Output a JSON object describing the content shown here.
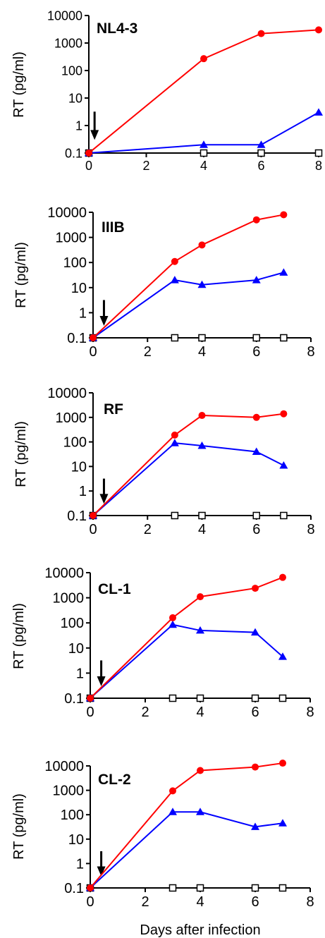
{
  "chart_data": [
    {
      "type": "line",
      "title": "NL4-3",
      "ylabel": "RT (pg/ml)",
      "xlabel": "",
      "yscale": "log",
      "ylim": [
        0.1,
        10000
      ],
      "xlim": [
        0,
        8
      ],
      "xticks": [
        "0",
        "2",
        "4",
        "6",
        "8"
      ],
      "yticks": [
        "0.1",
        "1",
        "10",
        "100",
        "1000",
        "10000"
      ],
      "arrow_day": 0.2,
      "series": [
        {
          "marker": "circle",
          "color": "#ff0000",
          "x": [
            0,
            4,
            6,
            8
          ],
          "y": [
            0.1,
            270,
            2200,
            3000
          ]
        },
        {
          "marker": "triangle",
          "color": "#0000ff",
          "x": [
            0,
            4,
            6,
            8
          ],
          "y": [
            0.1,
            0.2,
            0.2,
            3
          ]
        },
        {
          "marker": "square",
          "color": "#000000",
          "x": [
            0,
            4,
            6,
            8
          ],
          "y": [
            0.1,
            0.1,
            0.1,
            0.1
          ]
        }
      ]
    },
    {
      "type": "line",
      "title": "IIIB",
      "ylabel": "RT (pg/ml)",
      "xlabel": "",
      "yscale": "log",
      "ylim": [
        0.1,
        10000
      ],
      "xlim": [
        0,
        8
      ],
      "xticks": [
        "0",
        "2",
        "4",
        "6",
        "8"
      ],
      "yticks": [
        "0.1",
        "1",
        "10",
        "100",
        "1000",
        "10000"
      ],
      "arrow_day": 0.4,
      "series": [
        {
          "marker": "circle",
          "color": "#ff0000",
          "x": [
            0,
            3,
            4,
            6,
            7
          ],
          "y": [
            0.1,
            110,
            500,
            5000,
            8000
          ]
        },
        {
          "marker": "triangle",
          "color": "#0000ff",
          "x": [
            0,
            3,
            4,
            6,
            7
          ],
          "y": [
            0.1,
            20,
            13,
            20,
            40
          ]
        },
        {
          "marker": "square",
          "color": "#000000",
          "x": [
            0,
            3,
            4,
            6,
            7
          ],
          "y": [
            0.1,
            0.1,
            0.1,
            0.1,
            0.1
          ]
        }
      ]
    },
    {
      "type": "line",
      "title": "RF",
      "ylabel": "RT (pg/ml)",
      "xlabel": "",
      "yscale": "log",
      "ylim": [
        0.1,
        10000
      ],
      "xlim": [
        0,
        8
      ],
      "xticks": [
        "0",
        "2",
        "4",
        "6",
        "8"
      ],
      "yticks": [
        "0.1",
        "1",
        "10",
        "100",
        "1000",
        "10000"
      ],
      "arrow_day": 0.4,
      "series": [
        {
          "marker": "circle",
          "color": "#ff0000",
          "x": [
            0,
            3,
            4,
            6,
            7
          ],
          "y": [
            0.1,
            190,
            1200,
            1000,
            1400
          ]
        },
        {
          "marker": "triangle",
          "color": "#0000ff",
          "x": [
            0,
            3,
            4,
            6,
            7
          ],
          "y": [
            0.1,
            90,
            70,
            40,
            11
          ]
        },
        {
          "marker": "square",
          "color": "#000000",
          "x": [
            0,
            3,
            4,
            6,
            7
          ],
          "y": [
            0.1,
            0.1,
            0.1,
            0.1,
            0.1
          ]
        }
      ]
    },
    {
      "type": "line",
      "title": "CL-1",
      "ylabel": "RT (pg/ml)",
      "xlabel": "",
      "yscale": "log",
      "ylim": [
        0.1,
        10000
      ],
      "xlim": [
        0,
        8
      ],
      "xticks": [
        "0",
        "2",
        "4",
        "6",
        "8"
      ],
      "yticks": [
        "0.1",
        "1",
        "10",
        "100",
        "1000",
        "10000"
      ],
      "arrow_day": 0.4,
      "series": [
        {
          "marker": "circle",
          "color": "#ff0000",
          "x": [
            0,
            3,
            4,
            6,
            7
          ],
          "y": [
            0.1,
            160,
            1100,
            2400,
            6500
          ]
        },
        {
          "marker": "triangle",
          "color": "#0000ff",
          "x": [
            0,
            3,
            4,
            6,
            7
          ],
          "y": [
            0.1,
            85,
            50,
            42,
            4.5
          ]
        },
        {
          "marker": "square",
          "color": "#000000",
          "x": [
            0,
            3,
            4,
            6,
            7
          ],
          "y": [
            0.1,
            0.1,
            0.1,
            0.1,
            0.1
          ]
        }
      ]
    },
    {
      "type": "line",
      "title": "CL-2",
      "ylabel": "RT (pg/ml)",
      "xlabel": "Days after infection",
      "yscale": "log",
      "ylim": [
        0.1,
        10000
      ],
      "xlim": [
        0,
        8
      ],
      "xticks": [
        "0",
        "2",
        "4",
        "6",
        "8"
      ],
      "yticks": [
        "0.1",
        "1",
        "10",
        "100",
        "1000",
        "10000"
      ],
      "arrow_day": 0.4,
      "series": [
        {
          "marker": "circle",
          "color": "#ff0000",
          "x": [
            0,
            3,
            4,
            6,
            7
          ],
          "y": [
            0.1,
            950,
            6500,
            9000,
            13000
          ]
        },
        {
          "marker": "triangle",
          "color": "#0000ff",
          "x": [
            0,
            3,
            4,
            6,
            7
          ],
          "y": [
            0.1,
            130,
            130,
            32,
            45
          ]
        },
        {
          "marker": "square",
          "color": "#000000",
          "x": [
            0,
            3,
            4,
            6,
            7
          ],
          "y": [
            0.1,
            0.1,
            0.1,
            0.1,
            0.1
          ]
        }
      ]
    }
  ]
}
